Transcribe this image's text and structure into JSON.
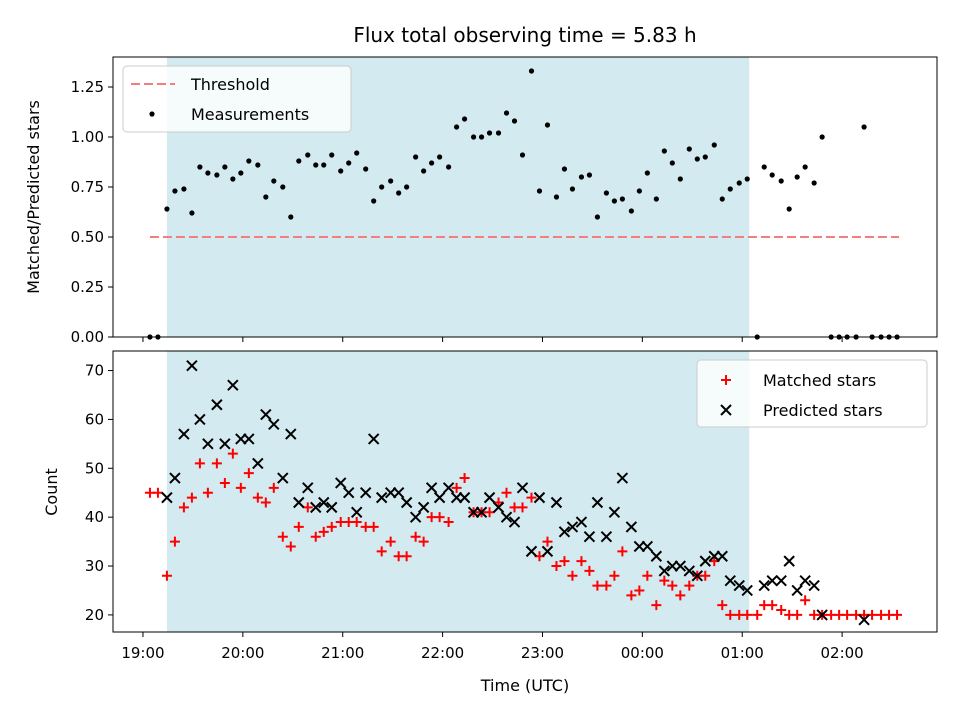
{
  "chart_data": {
    "type": "scatter",
    "title": "Flux total observing time = 5.83 h",
    "xlabel": "Time (UTC)",
    "x_units": "hours since 19:00 UTC",
    "x_ticks": [
      {
        "v": 0,
        "label": "19:00"
      },
      {
        "v": 1,
        "label": "20:00"
      },
      {
        "v": 2,
        "label": "21:00"
      },
      {
        "v": 3,
        "label": "22:00"
      },
      {
        "v": 4,
        "label": "23:00"
      },
      {
        "v": 5,
        "label": "00:00"
      },
      {
        "v": 6,
        "label": "01:00"
      },
      {
        "v": 7,
        "label": "02:00"
      }
    ],
    "xlim": [
      -0.3,
      7.95
    ],
    "shaded_span": [
      0.24,
      6.07
    ],
    "shaded_color": "#d3eaf1",
    "top": {
      "ylabel": "Matched/Predicted stars",
      "ylim": [
        0,
        1.4
      ],
      "yticks": [
        {
          "v": 0,
          "label": "0.00"
        },
        {
          "v": 0.25,
          "label": "0.25"
        },
        {
          "v": 0.5,
          "label": "0.50"
        },
        {
          "v": 0.75,
          "label": "0.75"
        },
        {
          "v": 1.0,
          "label": "1.00"
        },
        {
          "v": 1.25,
          "label": "1.25"
        }
      ],
      "threshold": {
        "name": "Threshold",
        "y": 0.5,
        "x_range": [
          0.07,
          7.57
        ],
        "color": "#f07f7f"
      },
      "measurements": {
        "name": "Measurements",
        "color": "#000000",
        "points": [
          [
            0.07,
            0.0
          ],
          [
            0.15,
            0.0
          ],
          [
            0.24,
            0.64
          ],
          [
            0.32,
            0.73
          ],
          [
            0.41,
            0.74
          ],
          [
            0.49,
            0.62
          ],
          [
            0.57,
            0.85
          ],
          [
            0.65,
            0.82
          ],
          [
            0.74,
            0.81
          ],
          [
            0.82,
            0.85
          ],
          [
            0.9,
            0.79
          ],
          [
            0.98,
            0.82
          ],
          [
            1.06,
            0.88
          ],
          [
            1.15,
            0.86
          ],
          [
            1.23,
            0.7
          ],
          [
            1.31,
            0.78
          ],
          [
            1.4,
            0.75
          ],
          [
            1.48,
            0.6
          ],
          [
            1.56,
            0.88
          ],
          [
            1.65,
            0.91
          ],
          [
            1.73,
            0.86
          ],
          [
            1.81,
            0.86
          ],
          [
            1.89,
            0.91
          ],
          [
            1.98,
            0.83
          ],
          [
            2.06,
            0.87
          ],
          [
            2.14,
            0.92
          ],
          [
            2.23,
            0.84
          ],
          [
            2.31,
            0.68
          ],
          [
            2.39,
            0.75
          ],
          [
            2.48,
            0.78
          ],
          [
            2.56,
            0.72
          ],
          [
            2.64,
            0.75
          ],
          [
            2.73,
            0.9
          ],
          [
            2.81,
            0.83
          ],
          [
            2.89,
            0.87
          ],
          [
            2.97,
            0.9
          ],
          [
            3.06,
            0.85
          ],
          [
            3.14,
            1.05
          ],
          [
            3.22,
            1.09
          ],
          [
            3.31,
            1.0
          ],
          [
            3.39,
            1.0
          ],
          [
            3.47,
            1.02
          ],
          [
            3.56,
            1.02
          ],
          [
            3.64,
            1.12
          ],
          [
            3.72,
            1.08
          ],
          [
            3.8,
            0.91
          ],
          [
            3.89,
            1.33
          ],
          [
            3.97,
            0.73
          ],
          [
            4.05,
            1.06
          ],
          [
            4.14,
            0.7
          ],
          [
            4.22,
            0.84
          ],
          [
            4.3,
            0.74
          ],
          [
            4.39,
            0.8
          ],
          [
            4.47,
            0.81
          ],
          [
            4.55,
            0.6
          ],
          [
            4.64,
            0.72
          ],
          [
            4.72,
            0.68
          ],
          [
            4.8,
            0.69
          ],
          [
            4.89,
            0.63
          ],
          [
            4.97,
            0.73
          ],
          [
            5.05,
            0.82
          ],
          [
            5.14,
            0.69
          ],
          [
            5.22,
            0.93
          ],
          [
            5.3,
            0.87
          ],
          [
            5.38,
            0.79
          ],
          [
            5.47,
            0.94
          ],
          [
            5.55,
            0.89
          ],
          [
            5.63,
            0.9
          ],
          [
            5.72,
            0.96
          ],
          [
            5.8,
            0.69
          ],
          [
            5.88,
            0.74
          ],
          [
            5.97,
            0.77
          ],
          [
            6.05,
            0.79
          ],
          [
            6.15,
            0.0
          ],
          [
            6.22,
            0.85
          ],
          [
            6.3,
            0.81
          ],
          [
            6.39,
            0.78
          ],
          [
            6.47,
            0.64
          ],
          [
            6.55,
            0.8
          ],
          [
            6.63,
            0.85
          ],
          [
            6.72,
            0.77
          ],
          [
            6.8,
            1.0
          ],
          [
            6.89,
            0.0
          ],
          [
            6.97,
            0.0
          ],
          [
            7.05,
            0.0
          ],
          [
            7.14,
            0.0
          ],
          [
            7.22,
            1.05
          ],
          [
            7.3,
            0.0
          ],
          [
            7.39,
            0.0
          ],
          [
            7.47,
            0.0
          ],
          [
            7.55,
            0.0
          ]
        ]
      },
      "legend_position": "upper-left"
    },
    "bottom": {
      "ylabel": "Count",
      "ylim": [
        16.5,
        74
      ],
      "yticks": [
        {
          "v": 20,
          "label": "20"
        },
        {
          "v": 30,
          "label": "30"
        },
        {
          "v": 40,
          "label": "40"
        },
        {
          "v": 50,
          "label": "50"
        },
        {
          "v": 60,
          "label": "60"
        },
        {
          "v": 70,
          "label": "70"
        }
      ],
      "series": [
        {
          "name": "Matched stars",
          "marker": "plus",
          "color": "#ff0000",
          "points": [
            [
              0.07,
              45
            ],
            [
              0.15,
              45
            ],
            [
              0.24,
              28
            ],
            [
              0.32,
              35
            ],
            [
              0.41,
              42
            ],
            [
              0.49,
              44
            ],
            [
              0.57,
              51
            ],
            [
              0.65,
              45
            ],
            [
              0.74,
              51
            ],
            [
              0.82,
              47
            ],
            [
              0.9,
              53
            ],
            [
              0.98,
              46
            ],
            [
              1.06,
              49
            ],
            [
              1.15,
              44
            ],
            [
              1.23,
              43
            ],
            [
              1.31,
              46
            ],
            [
              1.4,
              36
            ],
            [
              1.48,
              34
            ],
            [
              1.56,
              38
            ],
            [
              1.65,
              42
            ],
            [
              1.73,
              36
            ],
            [
              1.81,
              37
            ],
            [
              1.89,
              38
            ],
            [
              1.98,
              39
            ],
            [
              2.06,
              39
            ],
            [
              2.14,
              39
            ],
            [
              2.23,
              38
            ],
            [
              2.31,
              38
            ],
            [
              2.39,
              33
            ],
            [
              2.48,
              35
            ],
            [
              2.56,
              32
            ],
            [
              2.64,
              32
            ],
            [
              2.73,
              36
            ],
            [
              2.81,
              35
            ],
            [
              2.89,
              40
            ],
            [
              2.97,
              40
            ],
            [
              3.06,
              39
            ],
            [
              3.14,
              46
            ],
            [
              3.22,
              48
            ],
            [
              3.31,
              41
            ],
            [
              3.39,
              41
            ],
            [
              3.47,
              41
            ],
            [
              3.56,
              43
            ],
            [
              3.64,
              45
            ],
            [
              3.72,
              42
            ],
            [
              3.8,
              42
            ],
            [
              3.89,
              44
            ],
            [
              3.97,
              32
            ],
            [
              4.05,
              35
            ],
            [
              4.14,
              30
            ],
            [
              4.22,
              31
            ],
            [
              4.3,
              28
            ],
            [
              4.39,
              31
            ],
            [
              4.47,
              29
            ],
            [
              4.55,
              26
            ],
            [
              4.64,
              26
            ],
            [
              4.72,
              28
            ],
            [
              4.8,
              33
            ],
            [
              4.89,
              24
            ],
            [
              4.97,
              25
            ],
            [
              5.05,
              28
            ],
            [
              5.14,
              22
            ],
            [
              5.22,
              27
            ],
            [
              5.3,
              26
            ],
            [
              5.38,
              24
            ],
            [
              5.47,
              26
            ],
            [
              5.55,
              28
            ],
            [
              5.63,
              28
            ],
            [
              5.72,
              31
            ],
            [
              5.8,
              22
            ],
            [
              5.88,
              20
            ],
            [
              5.97,
              20
            ],
            [
              6.05,
              20
            ],
            [
              6.15,
              20
            ],
            [
              6.22,
              22
            ],
            [
              6.3,
              22
            ],
            [
              6.39,
              21
            ],
            [
              6.47,
              20
            ],
            [
              6.55,
              20
            ],
            [
              6.63,
              23
            ],
            [
              6.72,
              20
            ],
            [
              6.8,
              20
            ],
            [
              6.89,
              20
            ],
            [
              6.97,
              20
            ],
            [
              7.05,
              20
            ],
            [
              7.14,
              20
            ],
            [
              7.22,
              20
            ],
            [
              7.3,
              20
            ],
            [
              7.39,
              20
            ],
            [
              7.47,
              20
            ],
            [
              7.55,
              20
            ]
          ]
        },
        {
          "name": "Predicted stars",
          "marker": "x",
          "color": "#000000",
          "points": [
            [
              0.24,
              44
            ],
            [
              0.32,
              48
            ],
            [
              0.41,
              57
            ],
            [
              0.49,
              71
            ],
            [
              0.57,
              60
            ],
            [
              0.65,
              55
            ],
            [
              0.74,
              63
            ],
            [
              0.82,
              55
            ],
            [
              0.9,
              67
            ],
            [
              0.98,
              56
            ],
            [
              1.06,
              56
            ],
            [
              1.15,
              51
            ],
            [
              1.23,
              61
            ],
            [
              1.31,
              59
            ],
            [
              1.4,
              48
            ],
            [
              1.48,
              57
            ],
            [
              1.56,
              43
            ],
            [
              1.65,
              46
            ],
            [
              1.73,
              42
            ],
            [
              1.81,
              43
            ],
            [
              1.89,
              42
            ],
            [
              1.98,
              47
            ],
            [
              2.06,
              45
            ],
            [
              2.14,
              41
            ],
            [
              2.23,
              45
            ],
            [
              2.31,
              56
            ],
            [
              2.39,
              44
            ],
            [
              2.48,
              45
            ],
            [
              2.56,
              45
            ],
            [
              2.64,
              43
            ],
            [
              2.73,
              40
            ],
            [
              2.81,
              42
            ],
            [
              2.89,
              46
            ],
            [
              2.97,
              44
            ],
            [
              3.06,
              46
            ],
            [
              3.14,
              44
            ],
            [
              3.22,
              44
            ],
            [
              3.31,
              41
            ],
            [
              3.39,
              41
            ],
            [
              3.47,
              44
            ],
            [
              3.56,
              42
            ],
            [
              3.64,
              40
            ],
            [
              3.72,
              39
            ],
            [
              3.8,
              46
            ],
            [
              3.89,
              33
            ],
            [
              3.97,
              44
            ],
            [
              4.05,
              33
            ],
            [
              4.14,
              43
            ],
            [
              4.22,
              37
            ],
            [
              4.3,
              38
            ],
            [
              4.39,
              39
            ],
            [
              4.47,
              36
            ],
            [
              4.55,
              43
            ],
            [
              4.64,
              36
            ],
            [
              4.72,
              41
            ],
            [
              4.8,
              48
            ],
            [
              4.89,
              38
            ],
            [
              4.97,
              34
            ],
            [
              5.05,
              34
            ],
            [
              5.14,
              32
            ],
            [
              5.22,
              29
            ],
            [
              5.3,
              30
            ],
            [
              5.38,
              30
            ],
            [
              5.47,
              29
            ],
            [
              5.55,
              28
            ],
            [
              5.63,
              31
            ],
            [
              5.72,
              32
            ],
            [
              5.8,
              32
            ],
            [
              5.88,
              27
            ],
            [
              5.97,
              26
            ],
            [
              6.05,
              25
            ],
            [
              6.22,
              26
            ],
            [
              6.3,
              27
            ],
            [
              6.39,
              27
            ],
            [
              6.47,
              31
            ],
            [
              6.55,
              25
            ],
            [
              6.63,
              27
            ],
            [
              6.72,
              26
            ],
            [
              6.8,
              20
            ],
            [
              7.22,
              19
            ]
          ]
        }
      ],
      "legend_position": "upper-right"
    }
  }
}
